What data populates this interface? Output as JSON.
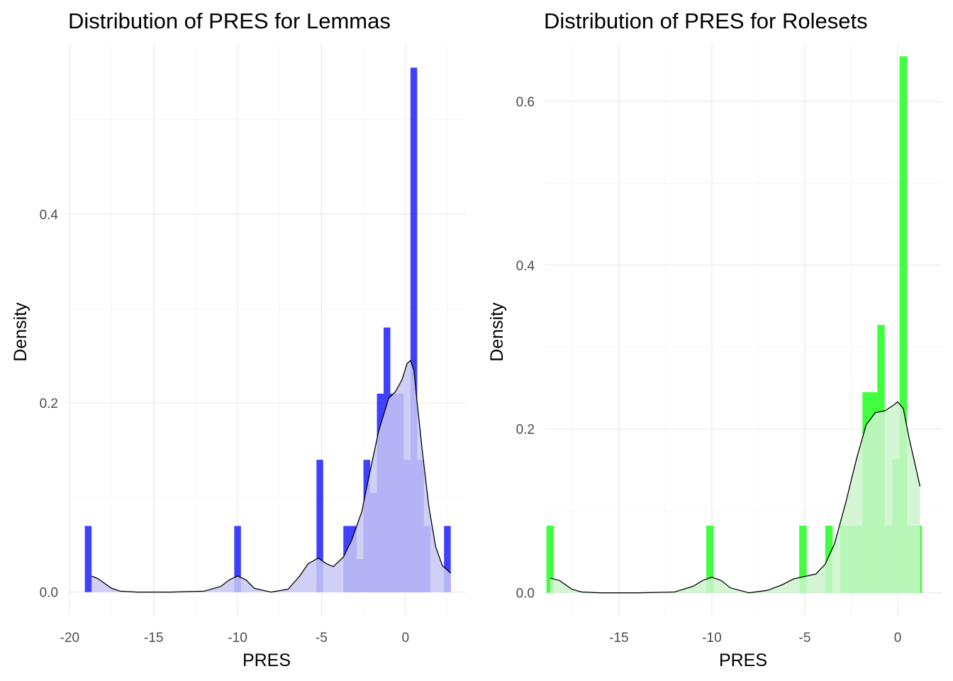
{
  "chart_data": [
    {
      "type": "bar",
      "title": "Distribution of PRES for Lemmas",
      "xlabel": "PRES",
      "ylabel": "Density",
      "xlim": [
        -20.1,
        3.6
      ],
      "ylim": [
        -0.025,
        0.58
      ],
      "x_ticks": [
        -20,
        -15,
        -10,
        -5,
        0
      ],
      "x_tick_labels": [
        "-20",
        "-15",
        "-10",
        "-5",
        "0"
      ],
      "y_ticks": [
        0.0,
        0.2,
        0.4
      ],
      "y_tick_labels": [
        "0.0",
        "0.2",
        "0.4"
      ],
      "grid": true,
      "bar_color": "#0000ff",
      "density_fill": "#c8c8f5",
      "bin_width": 0.4,
      "bins": [
        {
          "x0": -19.1,
          "x1": -18.7,
          "value": 0.07
        },
        {
          "x0": -10.2,
          "x1": -9.8,
          "value": 0.07
        },
        {
          "x0": -5.3,
          "x1": -4.9,
          "value": 0.14
        },
        {
          "x0": -3.7,
          "x1": -3.3,
          "value": 0.07
        },
        {
          "x0": -3.3,
          "x1": -2.9,
          "value": 0.07
        },
        {
          "x0": -2.9,
          "x1": -2.5,
          "value": 0.035
        },
        {
          "x0": -2.5,
          "x1": -2.1,
          "value": 0.14
        },
        {
          "x0": -2.1,
          "x1": -1.7,
          "value": 0.105
        },
        {
          "x0": -1.7,
          "x1": -1.3,
          "value": 0.21
        },
        {
          "x0": -1.3,
          "x1": -0.9,
          "value": 0.28
        },
        {
          "x0": -0.9,
          "x1": -0.5,
          "value": 0.21
        },
        {
          "x0": -0.5,
          "x1": -0.1,
          "value": 0.21
        },
        {
          "x0": -0.1,
          "x1": 0.3,
          "value": 0.14
        },
        {
          "x0": 0.3,
          "x1": 0.7,
          "value": 0.555
        },
        {
          "x0": 0.7,
          "x1": 1.1,
          "value": 0.14
        },
        {
          "x0": 1.1,
          "x1": 1.5,
          "value": 0.07
        },
        {
          "x0": 2.3,
          "x1": 2.7,
          "value": 0.07
        }
      ],
      "density": {
        "x": [
          -18.7,
          -18.3,
          -17.5,
          -17,
          -16,
          -14,
          -12,
          -11,
          -10.5,
          -10,
          -9.5,
          -9,
          -8,
          -7,
          -6.3,
          -5.8,
          -5.2,
          -4.7,
          -4.3,
          -3.7,
          -3.2,
          -2.6,
          -2.2,
          -1.6,
          -1.0,
          -0.6,
          -0.2,
          0.1,
          0.3,
          0.5,
          0.7,
          1.0,
          1.4,
          1.8,
          2.2,
          2.7
        ],
        "y": [
          0.017,
          0.014,
          0.004,
          0.001,
          0.0,
          0.0,
          0.001,
          0.006,
          0.013,
          0.017,
          0.013,
          0.004,
          0.0,
          0.003,
          0.017,
          0.03,
          0.036,
          0.03,
          0.027,
          0.037,
          0.055,
          0.085,
          0.12,
          0.17,
          0.205,
          0.212,
          0.225,
          0.242,
          0.245,
          0.235,
          0.2,
          0.15,
          0.09,
          0.048,
          0.028,
          0.02
        ]
      }
    },
    {
      "type": "bar",
      "title": "Distribution of PRES for Rolesets",
      "xlabel": "PRES",
      "ylabel": "Density",
      "xlim": [
        -19.0,
        2.4
      ],
      "ylim": [
        -0.028,
        0.67
      ],
      "x_ticks": [
        -15,
        -10,
        -5,
        0
      ],
      "x_tick_labels": [
        "-15",
        "-10",
        "-5",
        "0"
      ],
      "y_ticks": [
        0.0,
        0.2,
        0.4,
        0.6
      ],
      "y_tick_labels": [
        "0.0",
        "0.2",
        "0.4",
        "0.6"
      ],
      "grid": true,
      "bar_color": "#00ff00",
      "density_fill": "#ccf5cc",
      "bin_width": 0.4,
      "bins": [
        {
          "x0": -18.9,
          "x1": -18.5,
          "value": 0.082
        },
        {
          "x0": -10.3,
          "x1": -9.9,
          "value": 0.082
        },
        {
          "x0": -5.3,
          "x1": -4.9,
          "value": 0.082
        },
        {
          "x0": -3.9,
          "x1": -3.5,
          "value": 0.082
        },
        {
          "x0": -3.1,
          "x1": -2.7,
          "value": 0.082
        },
        {
          "x0": -2.7,
          "x1": -2.3,
          "value": 0.082
        },
        {
          "x0": -2.3,
          "x1": -1.9,
          "value": 0.082
        },
        {
          "x0": -1.9,
          "x1": -1.5,
          "value": 0.245
        },
        {
          "x0": -1.5,
          "x1": -1.1,
          "value": 0.245
        },
        {
          "x0": -1.1,
          "x1": -0.7,
          "value": 0.327
        },
        {
          "x0": -0.7,
          "x1": -0.3,
          "value": 0.082
        },
        {
          "x0": -0.3,
          "x1": 0.1,
          "value": 0.163
        },
        {
          "x0": 0.1,
          "x1": 0.5,
          "value": 0.655
        },
        {
          "x0": 0.5,
          "x1": 0.9,
          "value": 0.082
        },
        {
          "x0": 0.9,
          "x1": 1.3,
          "value": 0.082
        }
      ],
      "density": {
        "x": [
          -18.7,
          -18.2,
          -17.5,
          -17,
          -16,
          -14,
          -12,
          -11,
          -10.5,
          -10,
          -9.5,
          -9,
          -8,
          -7,
          -6.2,
          -5.6,
          -5.0,
          -4.4,
          -3.9,
          -3.4,
          -2.8,
          -2.2,
          -1.7,
          -1.2,
          -0.7,
          -0.3,
          0.0,
          0.3,
          0.6,
          0.9,
          1.2
        ],
        "y": [
          0.018,
          0.015,
          0.004,
          0.001,
          0.0,
          0.0,
          0.001,
          0.008,
          0.015,
          0.019,
          0.015,
          0.006,
          0.0,
          0.003,
          0.01,
          0.017,
          0.02,
          0.023,
          0.035,
          0.06,
          0.11,
          0.165,
          0.205,
          0.22,
          0.222,
          0.228,
          0.233,
          0.225,
          0.19,
          0.16,
          0.13
        ]
      }
    }
  ]
}
